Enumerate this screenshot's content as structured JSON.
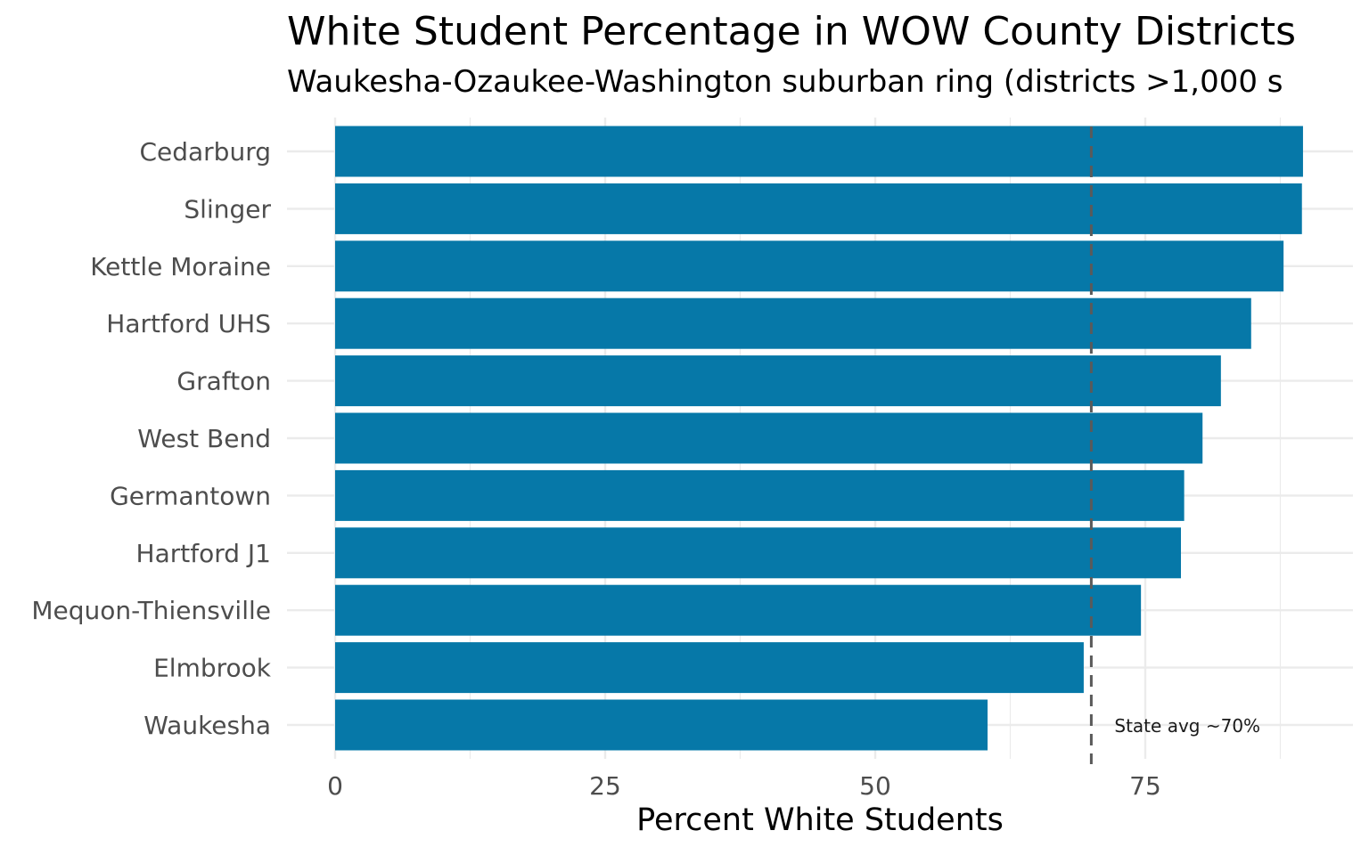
{
  "chart_data": {
    "type": "bar",
    "orientation": "horizontal",
    "title": "White Student Percentage in WOW County Districts",
    "subtitle": "Waukesha-Ozaukee-Washington suburban ring (districts >1,000 s",
    "xlabel": "Percent White Students",
    "ylabel": "",
    "categories": [
      "Cedarburg",
      "Slinger",
      "Kettle Moraine",
      "Hartford UHS",
      "Grafton",
      "West Bend",
      "Germantown",
      "Hartford J1",
      "Mequon-Thiensville",
      "Elmbrook",
      "Waukesha"
    ],
    "values": [
      89.6,
      89.5,
      87.8,
      84.8,
      82.0,
      80.3,
      78.6,
      78.3,
      74.6,
      69.3,
      60.4
    ],
    "xlim": [
      0,
      94.1
    ],
    "xticks": [
      0,
      25,
      50,
      75
    ],
    "grid": true,
    "legend": "none",
    "bar_color": "#0678A8",
    "reference_line": {
      "value": 70,
      "label": "State avg ~70%",
      "style": "dashed",
      "color": "#5a5a5a"
    }
  }
}
